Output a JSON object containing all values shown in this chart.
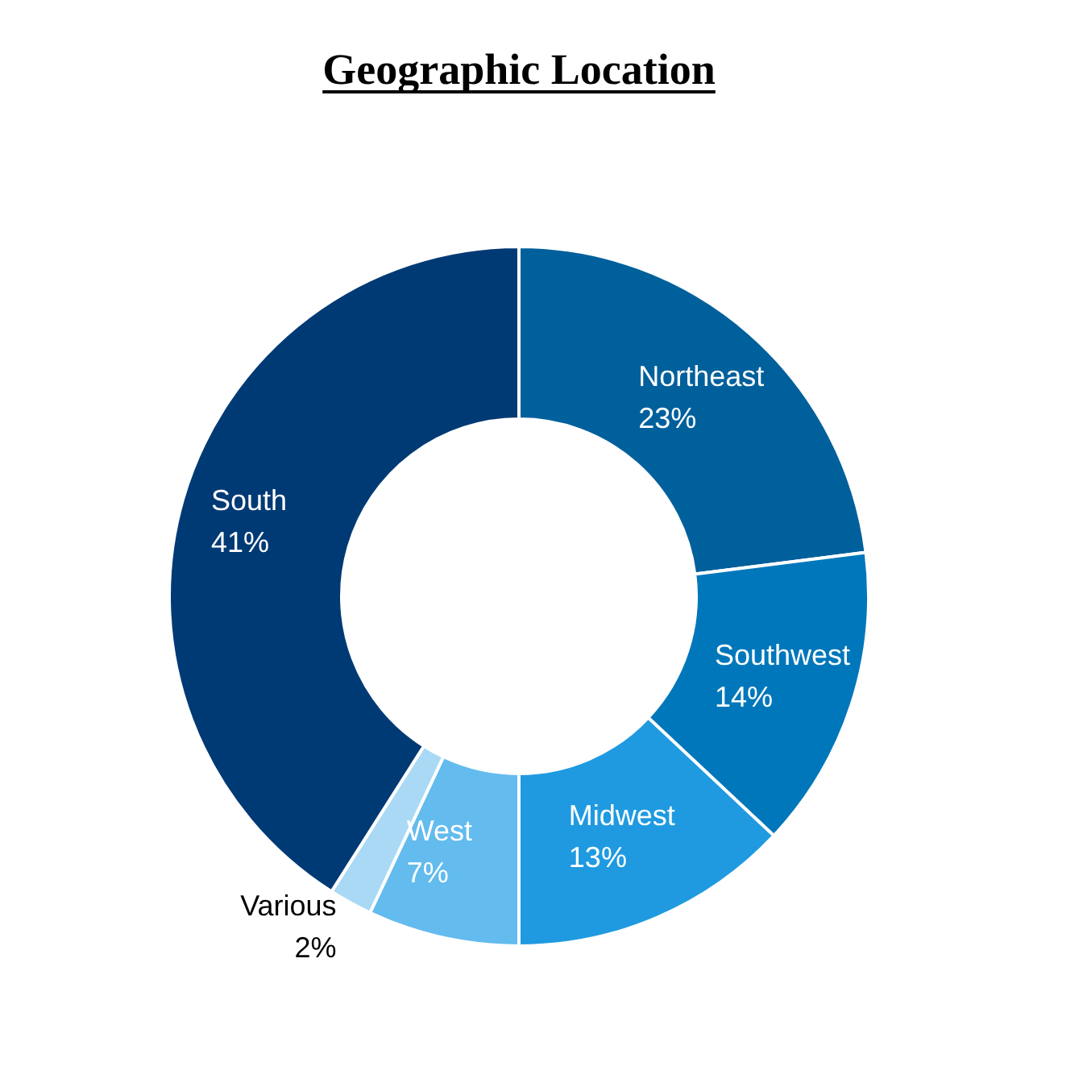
{
  "chart_data": {
    "type": "donut",
    "title": "Geographic Location",
    "categories": [
      "Northeast",
      "Southwest",
      "Midwest",
      "West",
      "Various",
      "South"
    ],
    "values": [
      23,
      14,
      13,
      7,
      2,
      41
    ],
    "value_labels": [
      "23%",
      "14%",
      "13%",
      "7%",
      "2%",
      "41%"
    ],
    "colors": [
      "#00609c",
      "#0077bb",
      "#1f9ae0",
      "#63bbee",
      "#a9d9f5",
      "#003a75"
    ]
  }
}
